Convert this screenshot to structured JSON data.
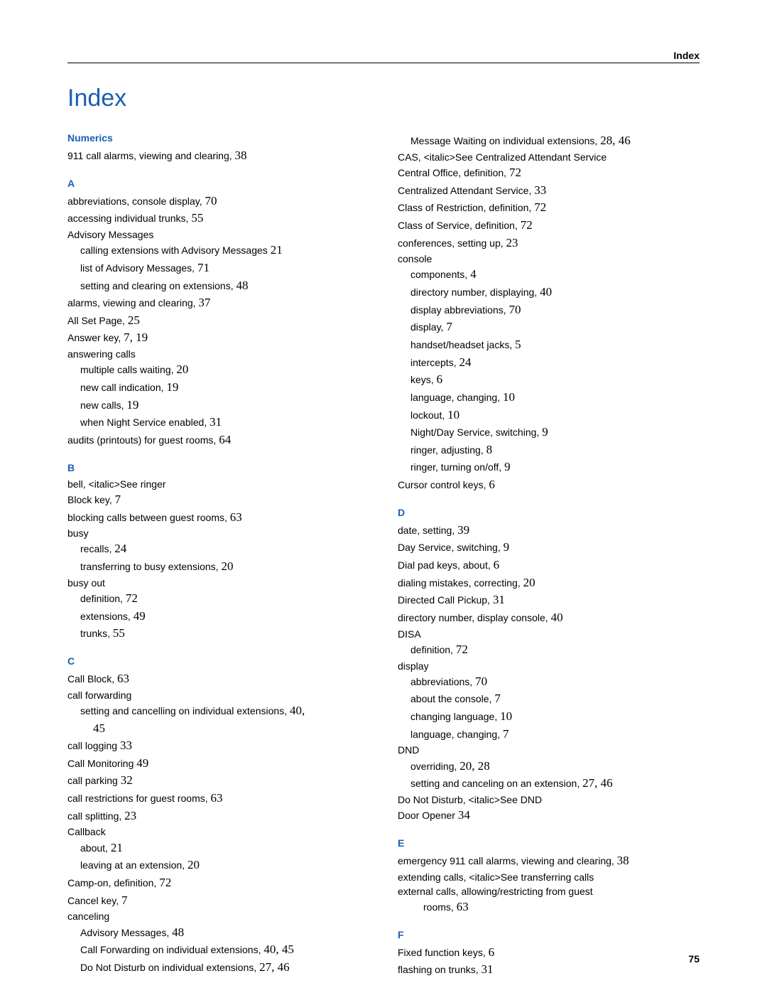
{
  "header": "Index",
  "title": "Index",
  "pageNumber": "75",
  "colors": {
    "accent": "#1a5fb4",
    "text": "#000000",
    "background": "#ffffff",
    "rule": "#000000"
  },
  "typography": {
    "body_family": "Arial",
    "body_size_pt": 10.5,
    "title_size_pt": 26,
    "page_number_family": "Times New Roman",
    "page_number_size_pt": 13
  },
  "leftColumn": [
    {
      "type": "letter",
      "text": "Numerics"
    },
    {
      "type": "entry",
      "text": "911 call alarms, viewing and clearing,",
      "pages": "38"
    },
    {
      "type": "letter",
      "text": "A"
    },
    {
      "type": "entry",
      "text": "abbreviations, console display,",
      "pages": "70"
    },
    {
      "type": "entry",
      "text": "accessing individual trunks,",
      "pages": "55"
    },
    {
      "type": "entry",
      "text": "Advisory Messages"
    },
    {
      "type": "sub",
      "text": "calling extensions with Advisory Messages",
      "pages": "21"
    },
    {
      "type": "sub",
      "text": "list of Advisory Messages,",
      "pages": "71"
    },
    {
      "type": "sub",
      "text": "setting and clearing on extensions,",
      "pages": "48"
    },
    {
      "type": "entry",
      "text": "alarms, viewing and clearing,",
      "pages": "37"
    },
    {
      "type": "entry",
      "text": "All Set Page,",
      "pages": "25"
    },
    {
      "type": "entry",
      "text": "Answer key,",
      "pages": "7, 19"
    },
    {
      "type": "entry",
      "text": "answering calls"
    },
    {
      "type": "sub",
      "text": "multiple calls waiting,",
      "pages": "20"
    },
    {
      "type": "sub",
      "text": "new call indication,",
      "pages": "19"
    },
    {
      "type": "sub",
      "text": "new calls,",
      "pages": "19"
    },
    {
      "type": "sub",
      "text": "when Night Service enabled,",
      "pages": "31"
    },
    {
      "type": "entry",
      "text": "audits (printouts) for guest rooms,",
      "pages": "64"
    },
    {
      "type": "letter",
      "text": "B"
    },
    {
      "type": "entry",
      "text": "bell, <italic>See ringer"
    },
    {
      "type": "entry",
      "text": "Block key,",
      "pages": "7"
    },
    {
      "type": "entry",
      "text": "blocking calls between guest rooms,",
      "pages": "63"
    },
    {
      "type": "entry",
      "text": "busy"
    },
    {
      "type": "sub",
      "text": "recalls,",
      "pages": "24"
    },
    {
      "type": "sub",
      "text": "transferring to busy extensions,",
      "pages": "20"
    },
    {
      "type": "entry",
      "text": "busy out"
    },
    {
      "type": "sub",
      "text": "definition,",
      "pages": "72"
    },
    {
      "type": "sub",
      "text": "extensions,",
      "pages": "49"
    },
    {
      "type": "sub",
      "text": "trunks,",
      "pages": "55"
    },
    {
      "type": "letter",
      "text": "C"
    },
    {
      "type": "entry",
      "text": "Call Block,",
      "pages": "63"
    },
    {
      "type": "entry",
      "text": "call forwarding"
    },
    {
      "type": "sub",
      "text": "setting and cancelling on individual extensions,",
      "pages": "40,"
    },
    {
      "type": "cont",
      "pages": "45"
    },
    {
      "type": "entry",
      "text": "call logging",
      "pages": "33"
    },
    {
      "type": "entry",
      "text": "Call Monitoring",
      "pages": "49"
    },
    {
      "type": "entry",
      "text": "call parking",
      "pages": "32"
    },
    {
      "type": "entry",
      "text": "call restrictions for guest rooms,",
      "pages": "63"
    },
    {
      "type": "entry",
      "text": "call splitting,",
      "pages": "23"
    },
    {
      "type": "entry",
      "text": "Callback"
    },
    {
      "type": "sub",
      "text": "about,",
      "pages": "21"
    },
    {
      "type": "sub",
      "text": "leaving at an extension,",
      "pages": "20"
    },
    {
      "type": "entry",
      "text": "Camp-on, definition,",
      "pages": "72"
    },
    {
      "type": "entry",
      "text": "Cancel key,",
      "pages": "7"
    },
    {
      "type": "entry",
      "text": "canceling"
    },
    {
      "type": "sub",
      "text": "Advisory Messages,",
      "pages": "48"
    },
    {
      "type": "sub",
      "text": "Call Forwarding on individual extensions,",
      "pages": "40, 45"
    },
    {
      "type": "sub",
      "text": "Do Not Disturb on individual extensions,",
      "pages": "27, 46"
    }
  ],
  "rightColumn": [
    {
      "type": "sub",
      "text": "Message Waiting on individual extensions,",
      "pages": "28, 46"
    },
    {
      "type": "entry",
      "text": "CAS, <italic>See Centralized Attendant Service"
    },
    {
      "type": "entry",
      "text": "Central Office, definition,",
      "pages": "72"
    },
    {
      "type": "entry",
      "text": "Centralized Attendant Service,",
      "pages": "33"
    },
    {
      "type": "entry",
      "text": "Class of Restriction, definition,",
      "pages": "72"
    },
    {
      "type": "entry",
      "text": "Class of Service, definition,",
      "pages": "72"
    },
    {
      "type": "entry",
      "text": "conferences, setting up,",
      "pages": "23"
    },
    {
      "type": "entry",
      "text": "console"
    },
    {
      "type": "sub",
      "text": "components,",
      "pages": "4"
    },
    {
      "type": "sub",
      "text": "directory number, displaying,",
      "pages": "40"
    },
    {
      "type": "sub",
      "text": "display abbreviations,",
      "pages": "70"
    },
    {
      "type": "sub",
      "text": "display,",
      "pages": "7"
    },
    {
      "type": "sub",
      "text": "handset/headset jacks,",
      "pages": "5"
    },
    {
      "type": "sub",
      "text": "intercepts,",
      "pages": "24"
    },
    {
      "type": "sub",
      "text": "keys,",
      "pages": "6"
    },
    {
      "type": "sub",
      "text": "language, changing,",
      "pages": "10"
    },
    {
      "type": "sub",
      "text": "lockout,",
      "pages": "10"
    },
    {
      "type": "sub",
      "text": "Night/Day Service, switching,",
      "pages": "9"
    },
    {
      "type": "sub",
      "text": "ringer, adjusting,",
      "pages": "8"
    },
    {
      "type": "sub",
      "text": "ringer, turning on/off,",
      "pages": "9"
    },
    {
      "type": "entry",
      "text": "Cursor control keys,",
      "pages": "6"
    },
    {
      "type": "letter",
      "text": "D"
    },
    {
      "type": "entry",
      "text": "date, setting,",
      "pages": "39"
    },
    {
      "type": "entry",
      "text": "Day Service, switching,",
      "pages": "9"
    },
    {
      "type": "entry",
      "text": "Dial pad keys, about,",
      "pages": "6"
    },
    {
      "type": "entry",
      "text": "dialing mistakes, correcting,",
      "pages": "20"
    },
    {
      "type": "entry",
      "text": "Directed Call Pickup,",
      "pages": "31"
    },
    {
      "type": "entry",
      "text": "directory number, display console,",
      "pages": "40"
    },
    {
      "type": "entry",
      "text": "DISA"
    },
    {
      "type": "sub",
      "text": "definition,",
      "pages": "72"
    },
    {
      "type": "entry",
      "text": "display"
    },
    {
      "type": "sub",
      "text": "abbreviations,",
      "pages": "70"
    },
    {
      "type": "sub",
      "text": "about the console,",
      "pages": "7"
    },
    {
      "type": "sub",
      "text": "changing language,",
      "pages": "10"
    },
    {
      "type": "sub",
      "text": "language, changing,",
      "pages": "7"
    },
    {
      "type": "entry",
      "text": "DND"
    },
    {
      "type": "sub",
      "text": "overriding,",
      "pages": "20, 28"
    },
    {
      "type": "sub",
      "text": "setting and canceling on an extension,",
      "pages": "27, 46"
    },
    {
      "type": "entry",
      "text": "Do Not Disturb, <italic>See DND"
    },
    {
      "type": "entry",
      "text": "Door Opener",
      "pages": "34"
    },
    {
      "type": "letter",
      "text": "E"
    },
    {
      "type": "entry",
      "text": "emergency 911 call alarms, viewing and clearing,",
      "pages": "38"
    },
    {
      "type": "entry",
      "text": "extending calls, <italic>See transferring calls"
    },
    {
      "type": "entry",
      "text": "external calls, allowing/restricting from guest"
    },
    {
      "type": "cont",
      "text": "rooms,",
      "pages": "63"
    },
    {
      "type": "letter",
      "text": "F"
    },
    {
      "type": "entry",
      "text": "Fixed function keys,",
      "pages": "6"
    },
    {
      "type": "entry",
      "text": "flashing on trunks,",
      "pages": "31"
    }
  ]
}
